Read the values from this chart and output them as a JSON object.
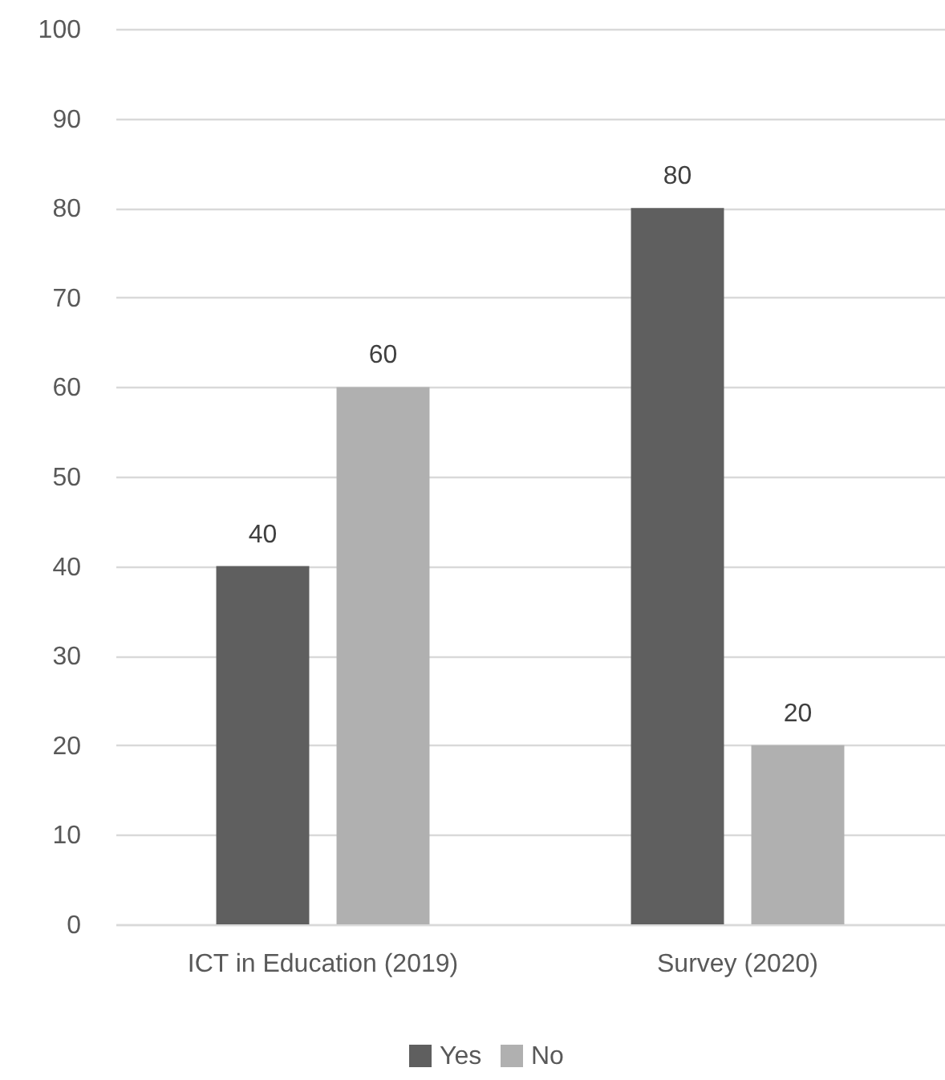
{
  "chart_data": {
    "type": "bar",
    "categories": [
      "ICT in Education (2019)",
      "Survey (2020)"
    ],
    "series": [
      {
        "name": "Yes",
        "color": "#5f5f5f",
        "values": [
          40,
          80
        ]
      },
      {
        "name": "No",
        "color": "#b0b0b0",
        "values": [
          60,
          20
        ]
      }
    ],
    "ylim": [
      0,
      100
    ],
    "yticks": [
      0,
      10,
      20,
      30,
      40,
      50,
      60,
      70,
      80,
      90,
      100
    ],
    "grid": "y",
    "legend": "bottom",
    "data_labels": true
  }
}
